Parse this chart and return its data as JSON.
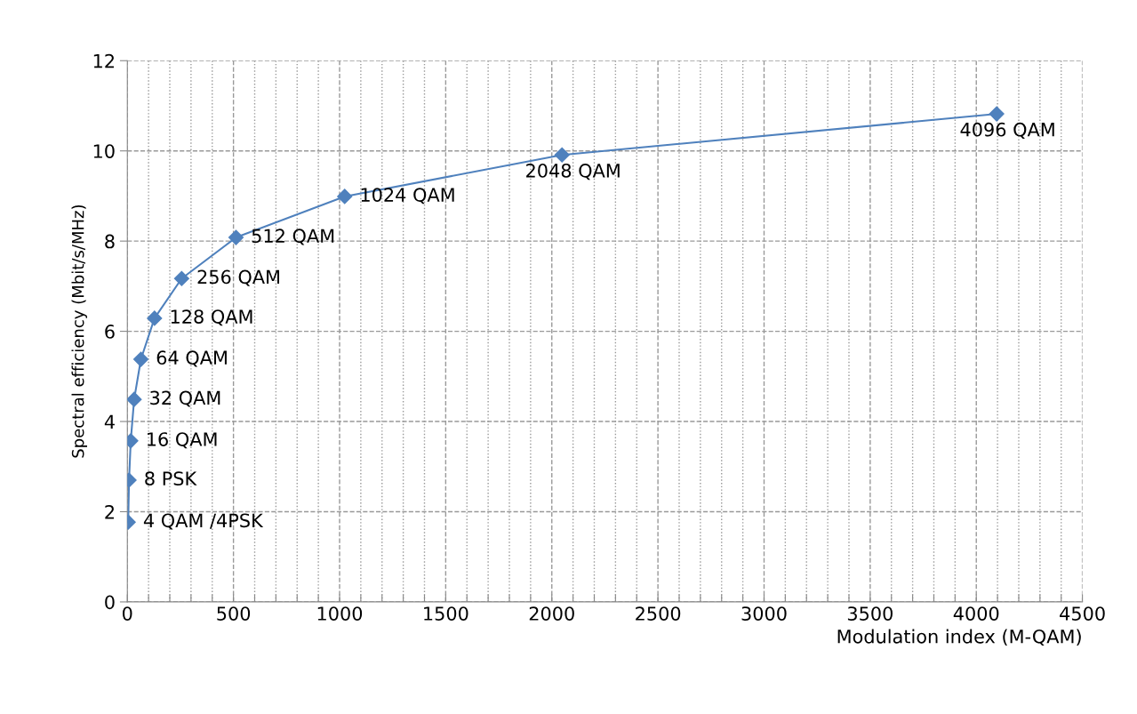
{
  "chart_data": {
    "type": "line",
    "xlabel": "Modulation index (M-QAM)",
    "ylabel": "Spectral efficiency (Mbit/s/MHz)",
    "x": [
      4,
      8,
      16,
      32,
      64,
      128,
      256,
      512,
      1024,
      2048,
      4096
    ],
    "series": [
      {
        "color": "#4f81bd",
        "values": [
          1.77,
          2.7,
          3.57,
          4.49,
          5.38,
          6.29,
          7.17,
          8.08,
          8.99,
          9.91,
          10.82
        ]
      }
    ],
    "marker": "diamond",
    "line_style": "solid",
    "grid": true,
    "xlim": [
      0,
      4500
    ],
    "ylim": [
      0,
      12
    ],
    "xticks": [
      0,
      {
        "value": 100,
        "label": null
      },
      {
        "value": 200,
        "label": null
      },
      {
        "value": 300,
        "label": null
      },
      {
        "value": 400,
        "label": null
      },
      500,
      {
        "value": 600,
        "label": null
      },
      {
        "value": 700,
        "label": null
      },
      {
        "value": 800,
        "label": null
      },
      {
        "value": 900,
        "label": null
      },
      1000,
      {
        "value": 1100,
        "label": null
      },
      {
        "value": 1200,
        "label": null
      },
      {
        "value": 1300,
        "label": null
      },
      {
        "value": 1400,
        "label": null
      },
      1500,
      {
        "value": 1600,
        "label": null
      },
      {
        "value": 1700,
        "label": null
      },
      {
        "value": 1800,
        "label": null
      },
      {
        "value": 1900,
        "label": null
      },
      2000,
      {
        "value": 2100,
        "label": null
      },
      {
        "value": 2200,
        "label": null
      },
      {
        "value": 2300,
        "label": null
      },
      {
        "value": 2400,
        "label": null
      },
      2500,
      {
        "value": 2600,
        "label": null
      },
      {
        "value": 2700,
        "label": null
      },
      {
        "value": 2800,
        "label": null
      },
      {
        "value": 2900,
        "label": null
      },
      3000,
      {
        "value": 3100,
        "label": null
      },
      {
        "value": 3200,
        "label": null
      },
      {
        "value": 3300,
        "label": null
      },
      {
        "value": 3400,
        "label": null
      },
      3500,
      {
        "value": 3600,
        "label": null
      },
      {
        "value": 3700,
        "label": null
      },
      {
        "value": 3800,
        "label": null
      },
      {
        "value": 3900,
        "label": null
      },
      4000,
      {
        "value": 4100,
        "label": null
      },
      {
        "value": 4200,
        "label": null
      },
      {
        "value": 4300,
        "label": null
      },
      {
        "value": 4400,
        "label": null
      },
      4500
    ],
    "yticks": [
      0,
      2,
      4,
      6,
      8,
      10,
      12
    ],
    "annotations": [
      {
        "text": "4 QAM /4PSK",
        "x": 4,
        "y": 1.77
      },
      {
        "text": "8 PSK",
        "x": 8,
        "y": 2.7
      },
      {
        "text": "16 QAM",
        "x": 16,
        "y": 3.57
      },
      {
        "text": "32 QAM",
        "x": 32,
        "y": 4.49
      },
      {
        "text": "64 QAM",
        "x": 64,
        "y": 5.38
      },
      {
        "text": "128 QAM",
        "x": 128,
        "y": 6.29
      },
      {
        "text": "256 QAM",
        "x": 256,
        "y": 7.17
      },
      {
        "text": "512 QAM",
        "x": 512,
        "y": 8.08
      },
      {
        "text": "1024 QAM",
        "x": 1024,
        "y": 8.99
      },
      {
        "text": "2048 QAM",
        "x": 2048,
        "y": 9.91
      },
      {
        "text": "4096 QAM",
        "x": 4096,
        "y": 10.82
      }
    ]
  }
}
